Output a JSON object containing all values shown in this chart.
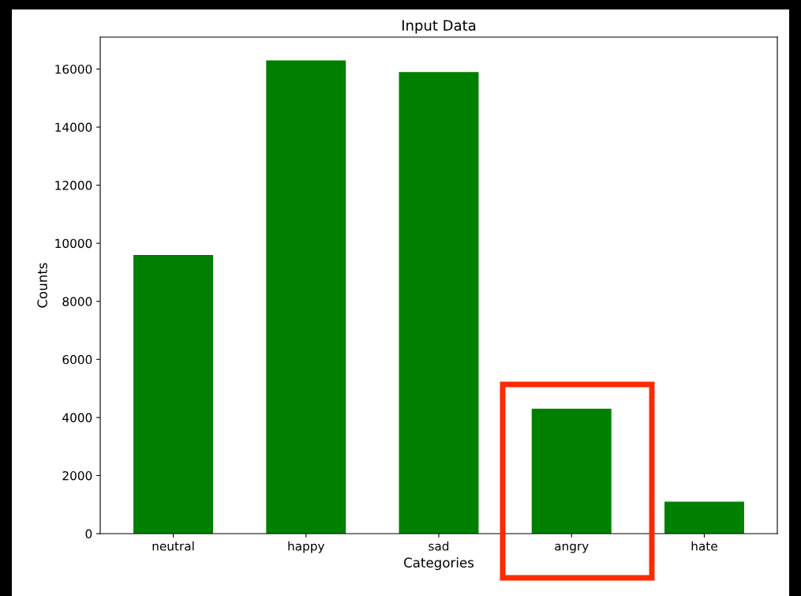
{
  "chart_data": {
    "type": "bar",
    "title": "Input Data",
    "xlabel": "Categories",
    "ylabel": "Counts",
    "categories": [
      "neutral",
      "happy",
      "sad",
      "angry",
      "hate"
    ],
    "values": [
      9600,
      16300,
      15900,
      4300,
      1100
    ],
    "color": "#008000",
    "ylim": [
      0,
      17100
    ],
    "yticks": [
      0,
      2000,
      4000,
      6000,
      8000,
      10000,
      12000,
      14000,
      16000
    ],
    "grid": false
  }
}
